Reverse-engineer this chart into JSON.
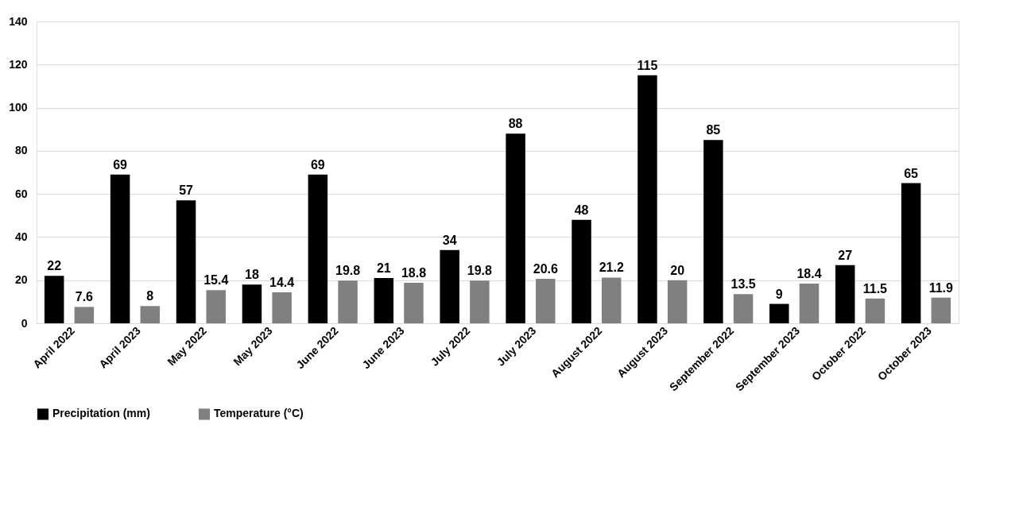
{
  "chart_data": {
    "type": "bar",
    "categories": [
      "April 2022",
      "April 2023",
      "May 2022",
      "May 2023",
      "June 2022",
      "June 2023",
      "July 2022",
      "July 2023",
      "August 2022",
      "August 2023",
      "September 2022",
      "September 2023",
      "October 2022",
      "October 2023"
    ],
    "series": [
      {
        "name": "Precipitation (mm)",
        "color": "#000000",
        "values": [
          22,
          69,
          57,
          18,
          69,
          21,
          34,
          88,
          48,
          115,
          85,
          9,
          27,
          65
        ]
      },
      {
        "name": "Temperature (°C)",
        "color": "#808080",
        "values": [
          7.6,
          8,
          15.4,
          14.4,
          19.8,
          18.8,
          19.8,
          20.6,
          21.2,
          20,
          13.5,
          18.4,
          11.5,
          11.9
        ]
      }
    ],
    "ylim": [
      0,
      140
    ],
    "yticks": [
      0,
      20,
      40,
      60,
      80,
      100,
      120,
      140
    ],
    "grid": "y",
    "legend": "bottom",
    "data_labels": true
  }
}
